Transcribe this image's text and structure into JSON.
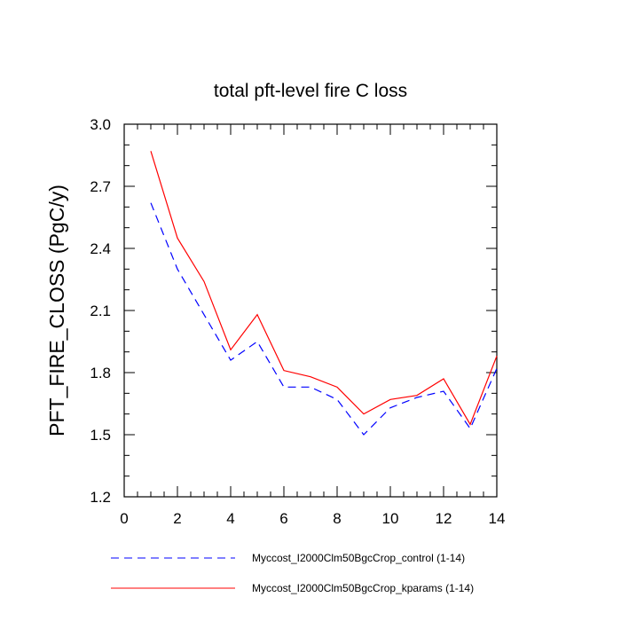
{
  "chart_data": {
    "type": "line",
    "title": "total pft-level fire C loss",
    "xlabel": "",
    "ylabel": "PFT_FIRE_CLOSS  (PgC/y)",
    "xlim": [
      0,
      14
    ],
    "ylim": [
      1.2,
      3.0
    ],
    "xticks": [
      0,
      2,
      4,
      6,
      8,
      10,
      12,
      14
    ],
    "xtick_labels": [
      "0",
      "2",
      "4",
      "6",
      "8",
      "10",
      "12",
      "14"
    ],
    "yticks": [
      1.2,
      1.5,
      1.8,
      2.1,
      2.4,
      2.7,
      3.0
    ],
    "ytick_labels": [
      "1.2",
      "1.5",
      "1.8",
      "2.1",
      "2.4",
      "2.7",
      "3.0"
    ],
    "grid": false,
    "legend_position": "bottom",
    "x": [
      1,
      2,
      3,
      4,
      5,
      6,
      7,
      8,
      9,
      10,
      11,
      12,
      13,
      14
    ],
    "series": [
      {
        "name": "Myccost_I2000Clm50BgcCrop_control (1-14)",
        "color": "#0000ff",
        "style": "dashed",
        "values": [
          2.62,
          2.3,
          2.08,
          1.86,
          1.95,
          1.73,
          1.73,
          1.67,
          1.5,
          1.63,
          1.68,
          1.71,
          1.53,
          1.82
        ]
      },
      {
        "name": "Myccost_I2000Clm50BgcCrop_kparams (1-14)",
        "color": "#ff0000",
        "style": "solid",
        "values": [
          2.87,
          2.45,
          2.24,
          1.91,
          2.08,
          1.81,
          1.78,
          1.73,
          1.6,
          1.67,
          1.69,
          1.77,
          1.55,
          1.88
        ]
      }
    ]
  }
}
